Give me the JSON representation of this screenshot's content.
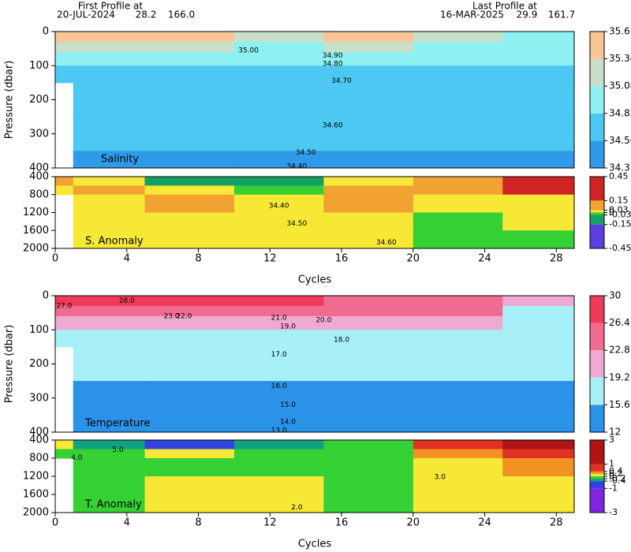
{
  "header": {
    "first_label": "First Profile at",
    "first_date": "20-JUL-2024",
    "first_lat": 28.2,
    "first_lon": {
      "value": 166.0,
      "label": "166.0"
    },
    "last_label": "Last Profile at",
    "last_date": "16-MAR-2025",
    "last_lat": 29.9,
    "last_lon": 161.7
  },
  "chart_data": [
    {
      "type": "heatmap",
      "title": "Salinity",
      "ylabel": "Pressure (dbar)",
      "xlim": [
        0,
        29
      ],
      "ylim": [
        0,
        400
      ],
      "yticks": [
        0,
        100,
        200,
        300,
        400
      ],
      "field": {
        "x": [
          0,
          1,
          5,
          10,
          15,
          20,
          25,
          29
        ],
        "y": [
          0,
          30,
          60,
          100,
          150,
          250,
          350,
          400
        ],
        "z": [
          [
            35.4,
            35.4,
            35.4,
            35.2,
            35.4,
            35.2,
            34.9
          ],
          [
            35.1,
            35.1,
            35.2,
            35.0,
            35.1,
            35.0,
            34.9
          ],
          [
            34.9,
            34.9,
            34.85,
            34.9,
            34.9,
            34.9,
            34.85
          ],
          [
            34.75,
            34.75,
            34.75,
            34.8,
            34.75,
            34.8,
            34.8
          ],
          [
            null,
            34.68,
            34.68,
            34.7,
            34.7,
            34.72,
            34.72
          ],
          [
            null,
            34.58,
            34.58,
            34.58,
            34.58,
            34.58,
            34.6
          ],
          [
            null,
            34.5,
            34.5,
            34.5,
            34.5,
            34.5,
            34.5
          ]
        ]
      },
      "colorbar": {
        "levels": [
          34.3,
          34.56,
          34.82,
          35.08,
          35.34,
          35.6
        ],
        "colors": [
          "#2f9be8",
          "#4cc8f2",
          "#8ff0f2",
          "#c9dfc9",
          "#f7c596"
        ]
      },
      "contour_labels": [
        {
          "value": 35.0,
          "label": "35.00"
        },
        {
          "value": 34.9,
          "label": "34.90"
        },
        {
          "value": 34.8,
          "label": "34.80"
        },
        {
          "value": 34.7,
          "label": "34.70"
        },
        {
          "value": 34.6,
          "label": "34.60"
        },
        {
          "value": 34.5,
          "label": "34.50"
        },
        {
          "value": 34.4,
          "label": "34.40"
        }
      ]
    },
    {
      "type": "heatmap",
      "title": "S. Anomaly",
      "xlabel": "Cycles",
      "xlim": [
        0,
        29
      ],
      "xticks": [
        0,
        4,
        8,
        12,
        16,
        20,
        24,
        28
      ],
      "ylim": [
        400,
        2000
      ],
      "yticks": [
        400,
        800,
        1200,
        1600,
        2000
      ],
      "field": {
        "x": [
          0,
          1,
          5,
          10,
          15,
          20,
          25,
          29
        ],
        "y": [
          400,
          600,
          800,
          1200,
          1600,
          2000
        ],
        "z": [
          [
            0.05,
            0.0,
            -0.05,
            -0.1,
            0.0,
            0.1,
            0.2
          ],
          [
            0.0,
            0.03,
            0.02,
            -0.02,
            0.03,
            0.1,
            0.15
          ],
          [
            null,
            0.0,
            0.03,
            0.02,
            0.03,
            0.0,
            0.02
          ],
          [
            null,
            0.01,
            0.02,
            0.01,
            0.02,
            -0.01,
            0.0
          ],
          [
            null,
            0.01,
            0.01,
            0.01,
            0.01,
            -0.01,
            -0.01
          ]
        ]
      },
      "colorbar": {
        "levels": [
          -0.45,
          -0.15,
          -0.03,
          0,
          0.03,
          0.15,
          0.45
        ],
        "colors": [
          "#5a3ee0",
          "#14a064",
          "#34d034",
          "#f6e834",
          "#f2a232",
          "#d02424"
        ]
      },
      "contour_labels": [
        {
          "value": 34.4,
          "label": "34.40"
        },
        {
          "value": 34.5,
          "label": "34.50"
        },
        {
          "value": 34.6,
          "label": "34.60"
        }
      ]
    },
    {
      "type": "heatmap",
      "title": "Temperature",
      "ylabel": "Pressure (dbar)",
      "xlim": [
        0,
        29
      ],
      "ylim": [
        0,
        400
      ],
      "yticks": [
        0,
        100,
        200,
        300,
        400
      ],
      "field": {
        "x": [
          0,
          1,
          5,
          10,
          15,
          20,
          25,
          29
        ],
        "y": [
          0,
          30,
          60,
          100,
          150,
          250,
          350,
          400
        ],
        "z": [
          [
            27.5,
            28,
            28,
            27,
            26,
            24.5,
            20
          ],
          [
            25,
            26,
            25,
            24,
            23,
            23,
            19
          ],
          [
            21,
            20,
            20,
            20,
            20,
            20,
            18
          ],
          [
            18,
            18,
            18,
            18,
            18.5,
            18.5,
            17
          ],
          [
            null,
            16.5,
            16.5,
            16.5,
            16.5,
            16.5,
            16.5
          ],
          [
            null,
            14.5,
            14.8,
            14.5,
            14.8,
            14.8,
            15
          ],
          [
            null,
            13.5,
            13.5,
            13.5,
            13.5,
            13.5,
            13.5
          ]
        ]
      },
      "colorbar": {
        "levels": [
          12,
          15.6,
          19.2,
          22.8,
          26.4,
          30
        ],
        "colors": [
          "#2a93e8",
          "#a8f0f8",
          "#eeaad2",
          "#f06a92",
          "#f03a5a"
        ]
      },
      "contour_labels": [
        {
          "value": 28.0,
          "label": "28.0"
        },
        {
          "value": 27.0,
          "label": "27.0"
        },
        {
          "value": 23.0,
          "label": "23.0"
        },
        {
          "value": 22.0,
          "label": "22.0"
        },
        {
          "value": 21.0,
          "label": "21.0"
        },
        {
          "value": 20.0,
          "label": "20.0"
        },
        {
          "value": 19.0,
          "label": "19.0"
        },
        {
          "value": 18.0,
          "label": "18.0"
        },
        {
          "value": 17.0,
          "label": "17.0"
        },
        {
          "value": 16.0,
          "label": "16.0"
        },
        {
          "value": 15.0,
          "label": "15.0"
        },
        {
          "value": 14.0,
          "label": "14.0"
        },
        {
          "value": 13.0,
          "label": "13.0"
        }
      ]
    },
    {
      "type": "heatmap",
      "title": "T. Anomaly",
      "xlabel": "Cycles",
      "xlim": [
        0,
        29
      ],
      "xticks": [
        0,
        4,
        8,
        12,
        16,
        20,
        24,
        28
      ],
      "ylim": [
        400,
        2000
      ],
      "yticks": [
        400,
        800,
        1200,
        1600,
        2000
      ],
      "field": {
        "x": [
          0,
          1,
          5,
          10,
          15,
          20,
          25,
          29
        ],
        "y": [
          400,
          600,
          800,
          1200,
          1600,
          2000
        ],
        "z": [
          [
            0.1,
            -0.3,
            -0.5,
            -0.3,
            -0.1,
            0.5,
            1.5
          ],
          [
            -0.1,
            -0.1,
            0.1,
            -0.1,
            -0.1,
            0.3,
            0.6
          ],
          [
            null,
            -0.1,
            -0.1,
            -0.1,
            -0.1,
            0.1,
            0.3
          ],
          [
            null,
            -0.1,
            0.1,
            0.1,
            -0.1,
            0.1,
            0.1
          ],
          [
            null,
            -0.1,
            0.1,
            0.1,
            -0.1,
            0.1,
            0.1
          ]
        ]
      },
      "colorbar": {
        "levels": [
          -3,
          -1,
          -0.4,
          -0.2,
          0,
          0.2,
          0.4,
          1,
          3
        ],
        "colors": [
          "#8024e0",
          "#3242e0",
          "#12a082",
          "#34d034",
          "#f6e834",
          "#f29222",
          "#e03222",
          "#b01414"
        ]
      },
      "contour_labels": [
        {
          "value": 5.0,
          "label": "5.0"
        },
        {
          "value": 4.0,
          "label": "4.0"
        },
        {
          "value": 3.0,
          "label": "3.0"
        },
        {
          "value": 2.0,
          "label": "2.0"
        }
      ]
    }
  ]
}
